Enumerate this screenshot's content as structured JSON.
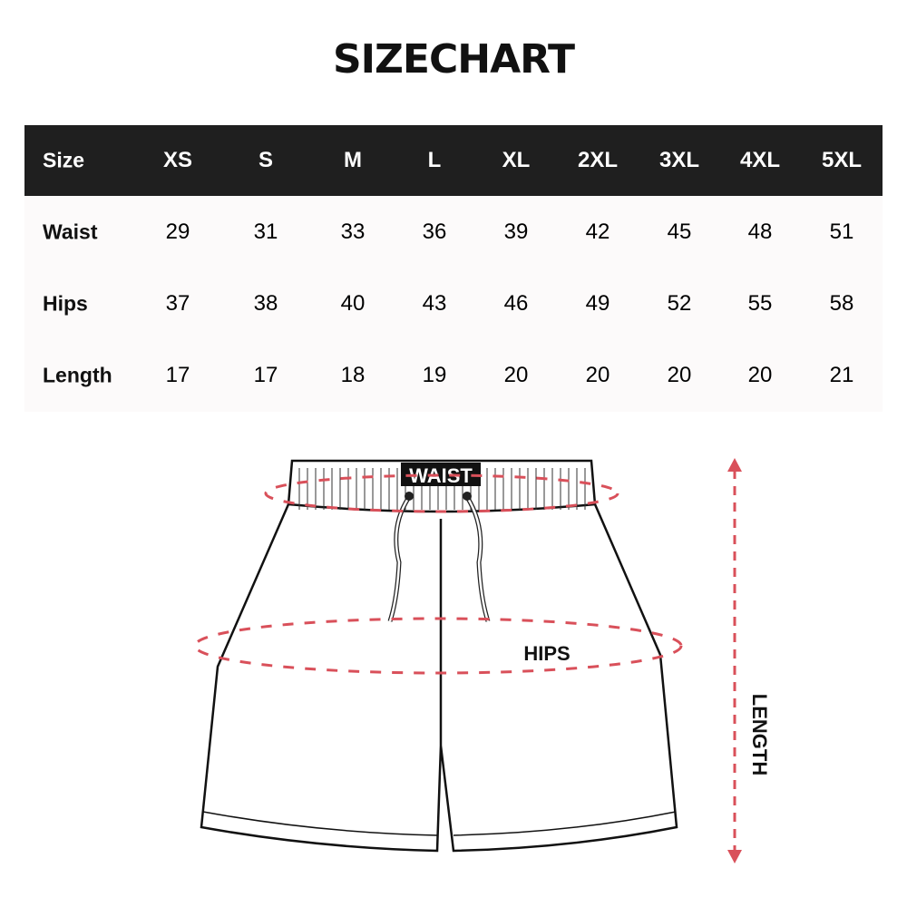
{
  "title": "SIZECHART",
  "table": {
    "header_label": "Size",
    "sizes": [
      "XS",
      "S",
      "M",
      "L",
      "XL",
      "2XL",
      "3XL",
      "4XL",
      "5XL"
    ],
    "rows": [
      {
        "label": "Waist",
        "values": [
          "29",
          "31",
          "33",
          "36",
          "39",
          "42",
          "45",
          "48",
          "51"
        ]
      },
      {
        "label": "Hips",
        "values": [
          "37",
          "38",
          "40",
          "43",
          "46",
          "49",
          "52",
          "55",
          "58"
        ]
      },
      {
        "label": "Length",
        "values": [
          "17",
          "17",
          "18",
          "19",
          "20",
          "20",
          "20",
          "20",
          "21"
        ]
      }
    ]
  },
  "diagram": {
    "waist_label": "WAIST",
    "hips_label": "HIPS",
    "length_label": "LENGTH",
    "measure_color": "#d9505a"
  }
}
